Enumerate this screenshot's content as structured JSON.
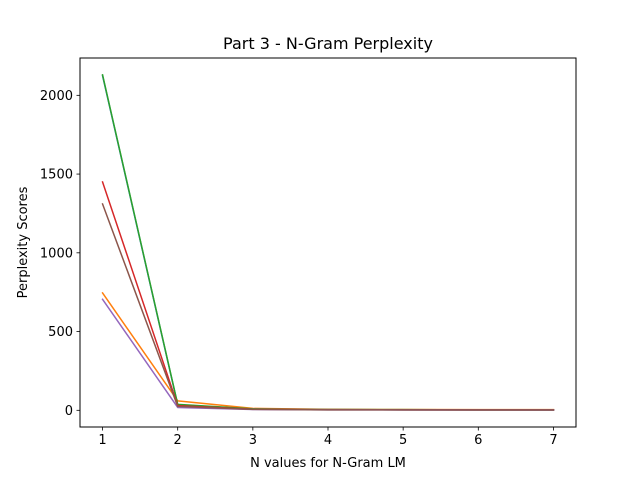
{
  "chart_data": {
    "type": "line",
    "title": "Part 3 - N-Gram Perplexity",
    "xlabel": "N values for N-Gram LM",
    "ylabel": "Perplexity Scores",
    "x": [
      1,
      2,
      3,
      4,
      5,
      6,
      7
    ],
    "xticks": [
      "1",
      "2",
      "3",
      "4",
      "5",
      "6",
      "7"
    ],
    "yticks": [
      {
        "value": 0,
        "label": "0"
      },
      {
        "value": 500,
        "label": "500"
      },
      {
        "value": 1000,
        "label": "1000"
      },
      {
        "value": 1500,
        "label": "1500"
      },
      {
        "value": 2000,
        "label": "2000"
      }
    ],
    "xlim": [
      0.7,
      7.3
    ],
    "ylim": [
      -106,
      2237
    ],
    "grid": false,
    "legend": "none",
    "series": [
      {
        "color": "#1f77b4",
        "values": [
          2125,
          35,
          8,
          4,
          3,
          3,
          2
        ]
      },
      {
        "color": "#ff7f0e",
        "values": [
          745,
          60,
          12,
          6,
          5,
          4,
          4
        ]
      },
      {
        "color": "#2ca02c",
        "values": [
          2130,
          38,
          9,
          5,
          4,
          3,
          3
        ]
      },
      {
        "color": "#d62728",
        "values": [
          1450,
          30,
          7,
          4,
          3,
          3,
          3
        ]
      },
      {
        "color": "#9467bd",
        "values": [
          705,
          18,
          5,
          3,
          3,
          2,
          2
        ]
      },
      {
        "color": "#8c564b",
        "values": [
          1310,
          25,
          6,
          3,
          3,
          2,
          2
        ]
      }
    ]
  }
}
